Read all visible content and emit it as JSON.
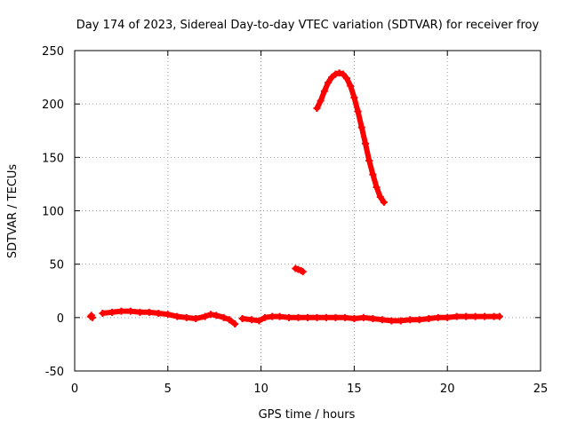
{
  "chart_data": {
    "type": "scatter",
    "title": "Day 174 of 2023, Sidereal Day-to-day VTEC variation (SDTVAR) for receiver froy",
    "xlabel": "GPS time / hours",
    "ylabel": "SDTVAR / TECUs",
    "xlim": [
      0,
      25
    ],
    "ylim": [
      -50,
      250
    ],
    "xticks": [
      0,
      5,
      10,
      15,
      20,
      25
    ],
    "yticks": [
      -50,
      0,
      50,
      100,
      150,
      200,
      250
    ],
    "grid": true,
    "series_color": "#ff0000",
    "series": [
      {
        "name": "sdtvar-early-point",
        "points": [
          [
            0.85,
            1
          ],
          [
            0.9,
            2
          ],
          [
            0.95,
            0
          ]
        ]
      },
      {
        "name": "sdtvar-baseline-1",
        "points": [
          [
            1.5,
            4
          ],
          [
            2.0,
            5
          ],
          [
            2.5,
            6
          ],
          [
            3.0,
            6
          ],
          [
            3.5,
            5
          ],
          [
            4.0,
            5
          ],
          [
            4.5,
            4
          ],
          [
            5.0,
            3
          ],
          [
            5.5,
            1
          ],
          [
            6.0,
            0
          ],
          [
            6.5,
            -1
          ],
          [
            7.0,
            1
          ],
          [
            7.3,
            3
          ],
          [
            7.6,
            2
          ],
          [
            8.0,
            0
          ],
          [
            8.3,
            -2
          ],
          [
            8.6,
            -6
          ]
        ]
      },
      {
        "name": "sdtvar-baseline-2",
        "points": [
          [
            9.0,
            -1
          ],
          [
            9.5,
            -2
          ],
          [
            9.9,
            -3
          ],
          [
            10.2,
            0
          ],
          [
            10.6,
            1
          ],
          [
            11.0,
            1
          ],
          [
            11.5,
            0
          ],
          [
            12.0,
            0
          ],
          [
            12.5,
            0
          ],
          [
            13.0,
            0
          ],
          [
            13.5,
            0
          ],
          [
            14.0,
            0
          ],
          [
            14.5,
            0
          ],
          [
            15.0,
            -1
          ],
          [
            15.5,
            0
          ],
          [
            16.0,
            -1
          ],
          [
            16.5,
            -2
          ],
          [
            17.0,
            -3
          ],
          [
            17.5,
            -3
          ],
          [
            18.0,
            -2
          ],
          [
            18.5,
            -2
          ],
          [
            19.0,
            -1
          ],
          [
            19.5,
            0
          ],
          [
            20.0,
            0
          ],
          [
            20.5,
            1
          ],
          [
            21.0,
            1
          ],
          [
            21.5,
            1
          ],
          [
            22.0,
            1
          ],
          [
            22.5,
            1
          ],
          [
            22.8,
            1
          ]
        ]
      },
      {
        "name": "sdtvar-cluster",
        "points": [
          [
            11.85,
            46
          ],
          [
            12.0,
            45
          ],
          [
            12.15,
            44
          ],
          [
            12.25,
            43
          ]
        ]
      },
      {
        "name": "sdtvar-arc",
        "points": [
          [
            13.0,
            196
          ],
          [
            13.2,
            203
          ],
          [
            13.4,
            212
          ],
          [
            13.6,
            220
          ],
          [
            13.8,
            225
          ],
          [
            14.0,
            228
          ],
          [
            14.2,
            229
          ],
          [
            14.4,
            228
          ],
          [
            14.6,
            224
          ],
          [
            14.8,
            217
          ],
          [
            15.0,
            206
          ],
          [
            15.2,
            193
          ],
          [
            15.4,
            178
          ],
          [
            15.6,
            163
          ],
          [
            15.8,
            147
          ],
          [
            16.0,
            134
          ],
          [
            16.2,
            122
          ],
          [
            16.4,
            113
          ],
          [
            16.6,
            108
          ]
        ]
      }
    ]
  }
}
